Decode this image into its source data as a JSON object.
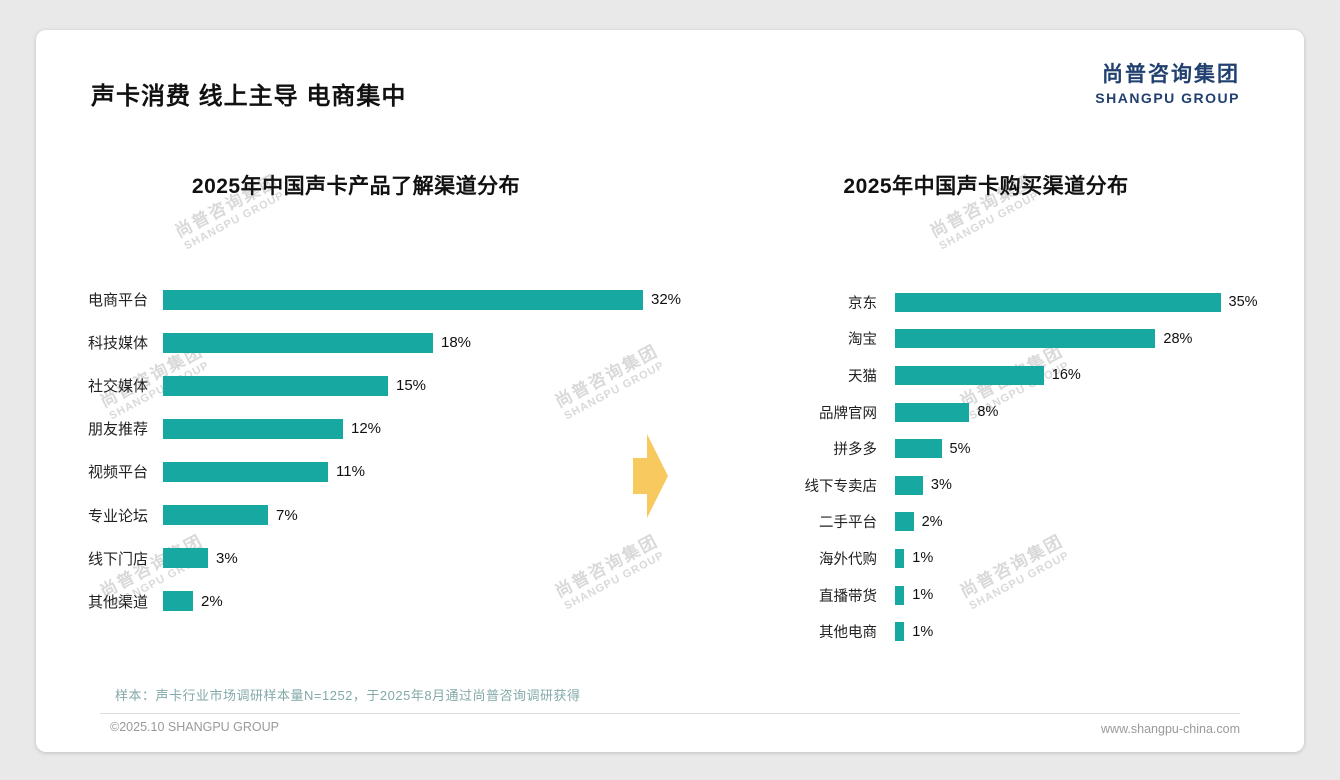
{
  "page": {
    "title": "声卡消费 线上主导 电商集中",
    "logo": {
      "cn": "尚普咨询集团",
      "en": "SHANGPU GROUP"
    },
    "watermark": {
      "cn": "尚普咨询集团",
      "en": "SHANGPU GROUP"
    },
    "sample_note": "样本：声卡行业市场调研样本量N=1252，于2025年8月通过尚普咨询调研获得",
    "footer_left": "©2025.10 SHANGPU GROUP",
    "footer_right": "www.shangpu-china.com"
  },
  "colors": {
    "bar": "#16a8a1",
    "arrow": "#f8c95f",
    "logo_blue": "#21406f"
  },
  "chart_data": [
    {
      "type": "bar",
      "orientation": "horizontal",
      "title": "2025年中国声卡产品了解渠道分布",
      "categories": [
        "电商平台",
        "科技媒体",
        "社交媒体",
        "朋友推荐",
        "视频平台",
        "专业论坛",
        "线下门店",
        "其他渠道"
      ],
      "values": [
        32,
        18,
        15,
        12,
        11,
        7,
        3,
        2
      ],
      "unit": "%",
      "xlim": [
        0,
        35
      ],
      "grid": false,
      "legend": "none"
    },
    {
      "type": "bar",
      "orientation": "horizontal",
      "title": "2025年中国声卡购买渠道分布",
      "categories": [
        "京东",
        "淘宝",
        "天猫",
        "品牌官网",
        "拼多多",
        "线下专卖店",
        "二手平台",
        "海外代购",
        "直播带货",
        "其他电商"
      ],
      "values": [
        35,
        28,
        16,
        8,
        5,
        3,
        2,
        1,
        1,
        1
      ],
      "unit": "%",
      "xlim": [
        0,
        38
      ],
      "grid": false,
      "legend": "none"
    }
  ]
}
